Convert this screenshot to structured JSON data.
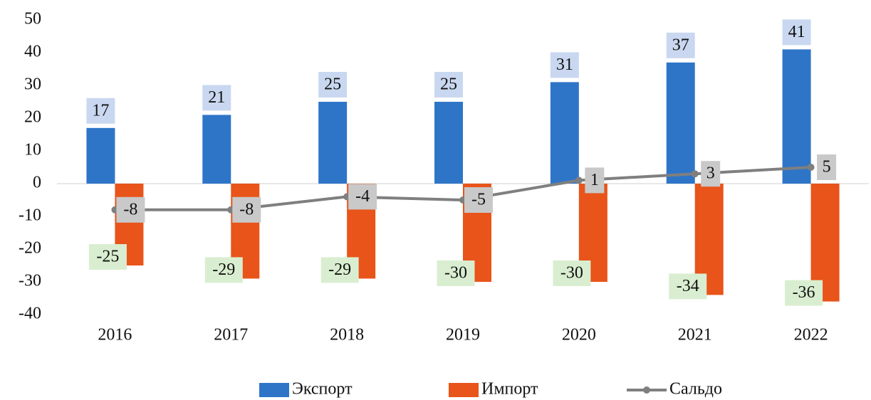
{
  "chart_data": {
    "type": "bar",
    "categories": [
      "2016",
      "2017",
      "2018",
      "2019",
      "2020",
      "2021",
      "2022"
    ],
    "series": [
      {
        "name": "Экспорт",
        "color": "#2e75c8",
        "label_bg": "#c9d8f0",
        "values": [
          17,
          21,
          25,
          25,
          31,
          37,
          41
        ]
      },
      {
        "name": "Импорт",
        "color": "#e8541a",
        "label_bg": "#d9eed0",
        "values": [
          -25,
          -29,
          -29,
          -30,
          -30,
          -34,
          -36
        ]
      },
      {
        "name": "Сальдо",
        "color": "#7f7f7f",
        "type": "line",
        "label_bg": "#c9c9c9",
        "values": [
          -8,
          -8,
          -4,
          -5,
          1,
          3,
          5
        ]
      }
    ],
    "ylim": [
      -40,
      50
    ],
    "yticks": [
      -40,
      -30,
      -20,
      -10,
      0,
      10,
      20,
      30,
      40,
      50
    ],
    "grid": false,
    "legend": "bottom"
  }
}
